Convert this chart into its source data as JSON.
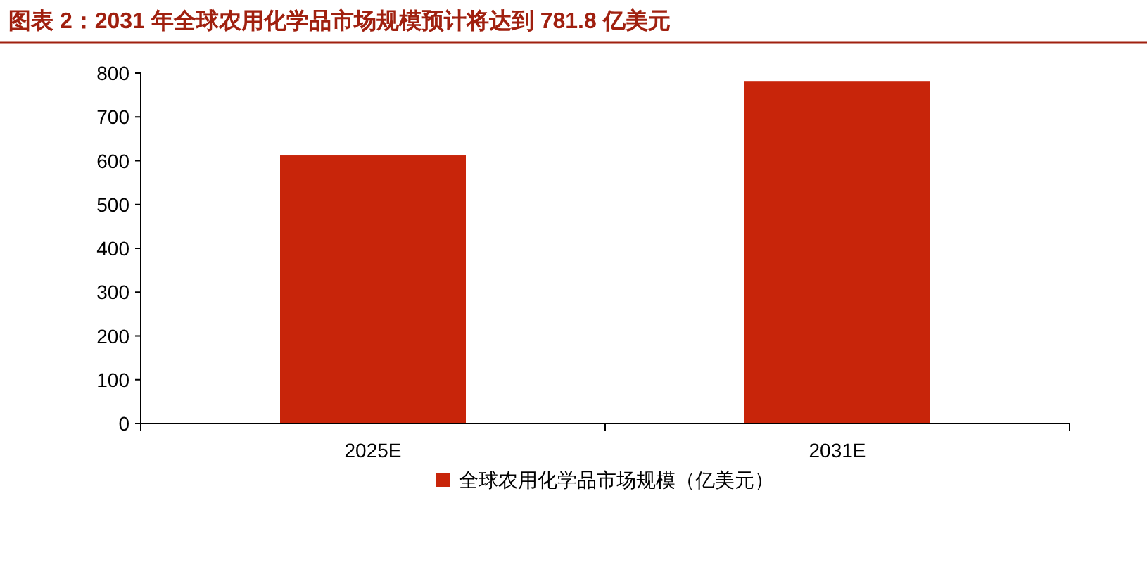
{
  "chart_data": {
    "type": "bar",
    "title": "图表 2：2031 年全球农用化学品市场规模预计将达到 781.8 亿美元",
    "categories": [
      "2025E",
      "2031E"
    ],
    "series": [
      {
        "name": "全球农用化学品市场规模（亿美元）",
        "color": "#c8250a",
        "values": [
          612,
          782
        ]
      }
    ],
    "ylim": [
      0,
      800
    ],
    "yticks": [
      0,
      100,
      200,
      300,
      400,
      500,
      600,
      700,
      800
    ],
    "legend": "bottom",
    "grid": false
  }
}
